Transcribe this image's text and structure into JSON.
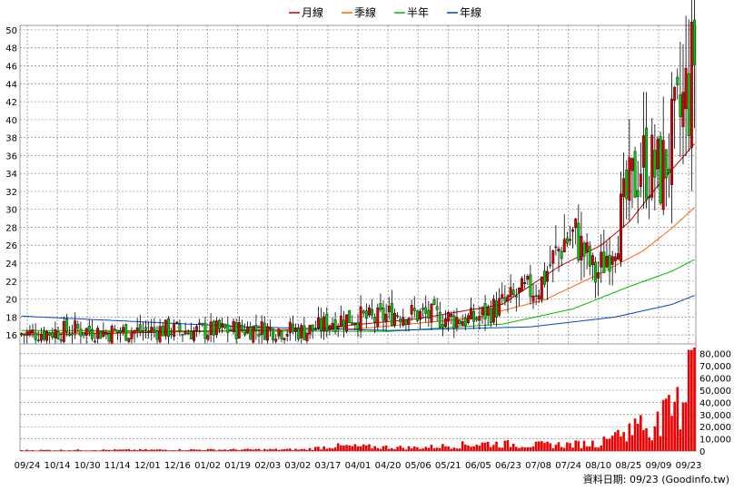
{
  "chart_data": {
    "type": "candlestick",
    "legend": [
      {
        "name": "月線",
        "color": "#cc0000"
      },
      {
        "name": "季線",
        "color": "#ff6600"
      },
      {
        "name": "半年",
        "color": "#00bb00"
      },
      {
        "name": "年線",
        "color": "#0044cc"
      }
    ],
    "legend_position": "top-center",
    "grid": true,
    "price_axis": {
      "ylim": [
        15,
        50.5
      ],
      "ticks": [
        16,
        18,
        20,
        22,
        24,
        26,
        28,
        30,
        32,
        34,
        36,
        38,
        40,
        42,
        44,
        46,
        48,
        50
      ],
      "position": "left"
    },
    "volume_axis": {
      "ylim": [
        0,
        88000
      ],
      "ticks": [
        0,
        10000,
        20000,
        30000,
        40000,
        50000,
        60000,
        70000,
        80000
      ],
      "tick_labels": [
        "0",
        "10,000",
        "20,000",
        "30,000",
        "40,000",
        "50,000",
        "60,000",
        "70,000",
        "80,000"
      ],
      "position": "right"
    },
    "x_labels": [
      "09/24",
      "10/14",
      "10/30",
      "11/14",
      "12/01",
      "12/16",
      "01/02",
      "01/19",
      "02/03",
      "03/02",
      "03/17",
      "04/01",
      "04/20",
      "05/06",
      "05/21",
      "06/05",
      "06/23",
      "07/08",
      "07/24",
      "08/10",
      "08/25",
      "09/09",
      "09/23"
    ],
    "price_anchors": [
      [
        0,
        16.1
      ],
      [
        10,
        16.3
      ],
      [
        20,
        16.6
      ],
      [
        30,
        16.3
      ],
      [
        40,
        16.4
      ],
      [
        50,
        16.6
      ],
      [
        60,
        16.4
      ],
      [
        70,
        16.5
      ],
      [
        80,
        16.7
      ],
      [
        90,
        16.6
      ],
      [
        100,
        16.4
      ],
      [
        105,
        16.8
      ],
      [
        110,
        17.6
      ],
      [
        118,
        18.0
      ],
      [
        125,
        17.7
      ],
      [
        132,
        18.5
      ],
      [
        140,
        18.3
      ],
      [
        150,
        17.9
      ],
      [
        160,
        17.7
      ],
      [
        165,
        18.6
      ],
      [
        172,
        19.7
      ],
      [
        178,
        20.8
      ],
      [
        183,
        21.4
      ],
      [
        187,
        23.8
      ],
      [
        192,
        26.6
      ],
      [
        196,
        27.0
      ],
      [
        200,
        24.5
      ],
      [
        203,
        22.5
      ],
      [
        206,
        24.2
      ],
      [
        210,
        27.3
      ],
      [
        215,
        31.8
      ],
      [
        219,
        35.4
      ],
      [
        223,
        34.6
      ],
      [
        226,
        33.8
      ],
      [
        229,
        36.4
      ],
      [
        232,
        39.0
      ],
      [
        235,
        42.5
      ],
      [
        237,
        44.6
      ],
      [
        238,
        47.8
      ]
    ],
    "moving_average_anchors": {
      "月線": [
        [
          0,
          16.0
        ],
        [
          100,
          16.6
        ],
        [
          140,
          17.8
        ],
        [
          170,
          19.4
        ],
        [
          190,
          23.6
        ],
        [
          205,
          26.0
        ],
        [
          215,
          28.6
        ],
        [
          225,
          32.6
        ],
        [
          238,
          37.3
        ]
      ],
      "季線": [
        [
          0,
          16.2
        ],
        [
          120,
          16.7
        ],
        [
          160,
          17.9
        ],
        [
          185,
          19.9
        ],
        [
          205,
          22.9
        ],
        [
          220,
          25.4
        ],
        [
          230,
          27.9
        ],
        [
          238,
          30.2
        ]
      ],
      "半年": [
        [
          0,
          16.5
        ],
        [
          130,
          16.4
        ],
        [
          170,
          17.2
        ],
        [
          195,
          18.9
        ],
        [
          215,
          21.4
        ],
        [
          230,
          23.1
        ],
        [
          238,
          24.4
        ]
      ],
      "年線": [
        [
          0,
          18.1
        ],
        [
          80,
          16.9
        ],
        [
          130,
          16.5
        ],
        [
          180,
          16.9
        ],
        [
          210,
          18.0
        ],
        [
          230,
          19.4
        ],
        [
          238,
          20.4
        ]
      ]
    },
    "volume_anchors": [
      [
        0,
        800
      ],
      [
        100,
        1500
      ],
      [
        110,
        4500
      ],
      [
        140,
        3000
      ],
      [
        165,
        7000
      ],
      [
        180,
        5500
      ],
      [
        195,
        6000
      ],
      [
        205,
        7500
      ],
      [
        215,
        20000
      ],
      [
        225,
        25000
      ],
      [
        233,
        42000
      ],
      [
        237,
        83000
      ],
      [
        238,
        85000
      ]
    ],
    "n_sessions": 239,
    "last_date": "09/23"
  },
  "source": {
    "label": "資料日期:",
    "date": "09/23",
    "site": "(Goodinfo.tw)"
  }
}
